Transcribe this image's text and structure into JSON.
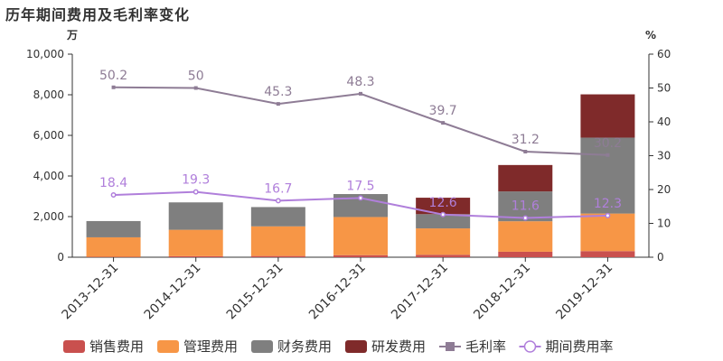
{
  "title": "历年期间费用及毛利率变化",
  "chart_data": {
    "type": "bar",
    "stacked": true,
    "categories": [
      "2013-12-31",
      "2014-12-31",
      "2015-12-31",
      "2016-12-31",
      "2017-12-31",
      "2018-12-31",
      "2019-12-31"
    ],
    "y_left": {
      "unit": "万",
      "range": [
        0,
        10000
      ],
      "ticks": [
        0,
        2000,
        4000,
        6000,
        8000,
        10000
      ],
      "tick_labels": [
        "0",
        "2,000",
        "4,000",
        "6,000",
        "8,000",
        "10,000"
      ]
    },
    "y_right": {
      "unit": "%",
      "range": [
        0,
        60
      ],
      "ticks": [
        0,
        10,
        20,
        30,
        40,
        50,
        60
      ],
      "tick_labels": [
        "0",
        "10",
        "20",
        "30",
        "40",
        "50",
        "60"
      ]
    },
    "bar_series": [
      {
        "name": "销售费用",
        "color": "#c9504e",
        "values": [
          20,
          50,
          60,
          100,
          120,
          270,
          300
        ]
      },
      {
        "name": "管理费用",
        "color": "#f79646",
        "values": [
          960,
          1300,
          1460,
          1880,
          1300,
          1500,
          1850
        ]
      },
      {
        "name": "财务费用",
        "color": "#7f7f7f",
        "values": [
          800,
          1350,
          950,
          1130,
          700,
          1470,
          3740
        ]
      },
      {
        "name": "研发费用",
        "color": "#7f2a2a",
        "values": [
          0,
          0,
          0,
          0,
          810,
          1300,
          2130
        ]
      }
    ],
    "line_series": [
      {
        "name": "毛利率",
        "color": "#8e7c95",
        "marker": "square",
        "values": [
          50.2,
          50,
          45.3,
          48.3,
          39.7,
          31.2,
          30.2
        ],
        "labels": [
          "50.2",
          "50",
          "45.3",
          "48.3",
          "39.7",
          "31.2",
          "30.2"
        ]
      },
      {
        "name": "期间费用率",
        "color": "#b07fdb",
        "marker": "circle",
        "values": [
          18.4,
          19.3,
          16.7,
          17.5,
          12.6,
          11.6,
          12.3
        ],
        "labels": [
          "18.4",
          "19.3",
          "16.7",
          "17.5",
          "12.6",
          "11.6",
          "12.3"
        ]
      }
    ],
    "legend_position": "bottom",
    "grid": false
  }
}
